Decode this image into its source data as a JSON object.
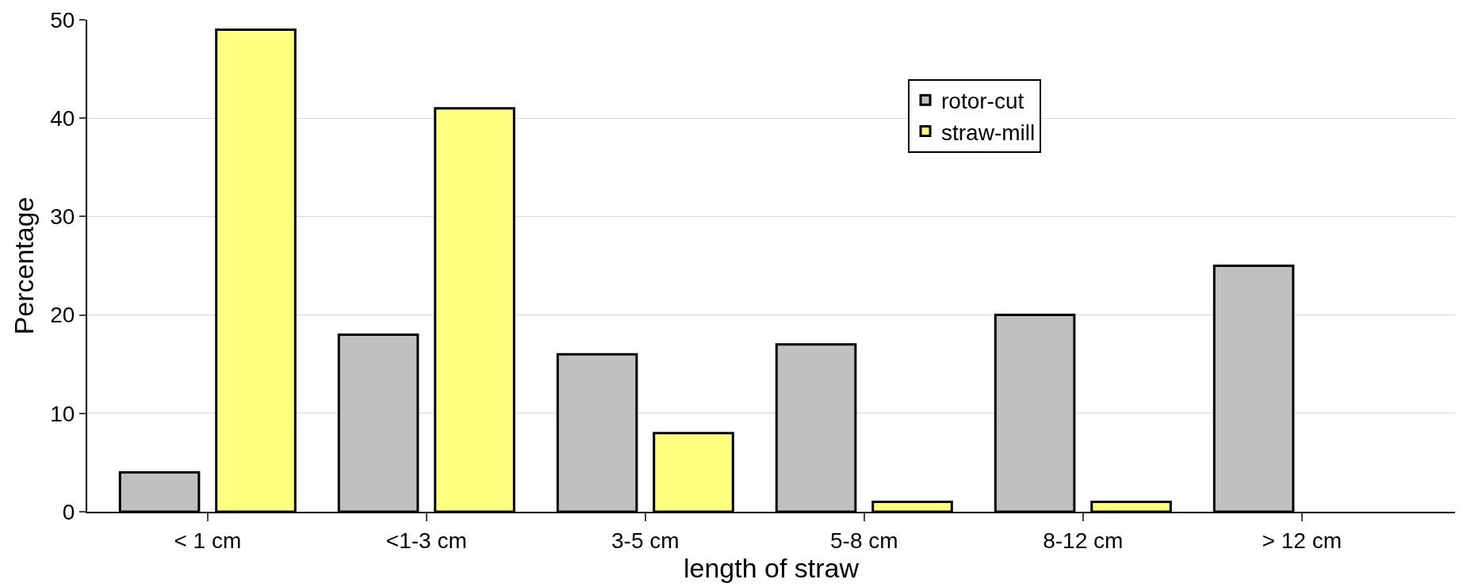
{
  "chart_data": {
    "type": "bar",
    "xlabel": "length of straw",
    "ylabel": "Percentage",
    "categories": [
      "< 1 cm",
      "<1-3 cm",
      "3-5 cm",
      "5-8 cm",
      "8-12 cm",
      "> 12 cm"
    ],
    "series": [
      {
        "name": "rotor-cut",
        "color": "#c0c0c0",
        "values": [
          4,
          18,
          16,
          17,
          20,
          25
        ]
      },
      {
        "name": "straw-mill",
        "color": "#ffff80",
        "values": [
          49,
          41,
          8,
          1,
          1,
          null
        ]
      }
    ],
    "ylim": [
      0,
      50
    ],
    "yticks": [
      0,
      10,
      20,
      30,
      40,
      50
    ],
    "grid": "y",
    "legend": "top right"
  }
}
